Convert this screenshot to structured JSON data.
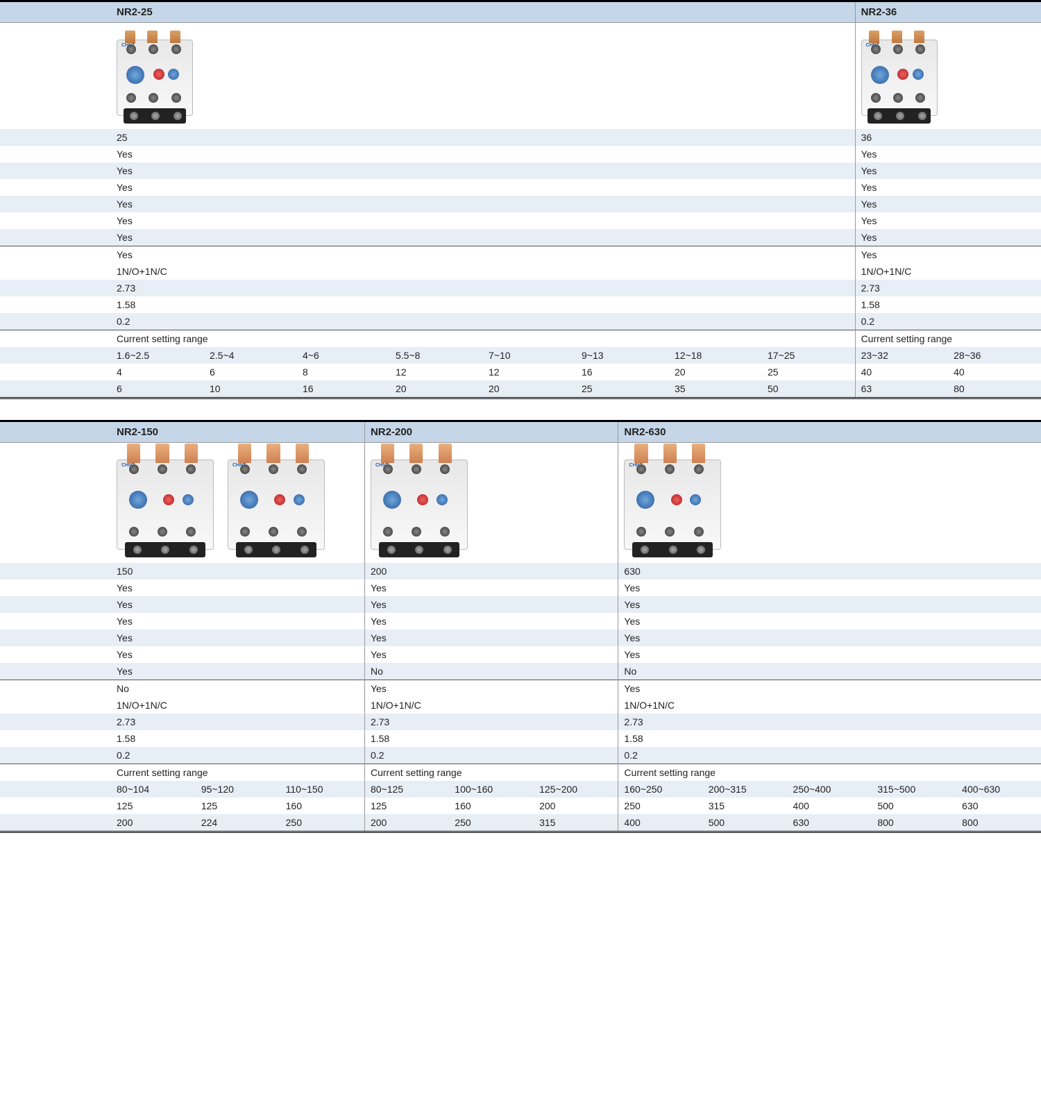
{
  "colors": {
    "header_bg": "#c5d6e8",
    "row_odd_bg": "#e8eef6",
    "row_even_bg": "#ffffff",
    "border_dark": "#000000",
    "border_light": "#999999",
    "text": "#222222",
    "brand_blue": "#2460a8",
    "copper": "#d08050",
    "dial_blue": "#2a5a9e",
    "btn_red": "#b02020"
  },
  "table1": {
    "products": [
      {
        "name": "NR2-25",
        "img_count": 1
      },
      {
        "name": "NR2-36",
        "img_count": 1
      }
    ],
    "spec_rows": [
      [
        "25",
        "36"
      ],
      [
        "Yes",
        "Yes"
      ],
      [
        "Yes",
        "Yes"
      ],
      [
        "Yes",
        "Yes"
      ],
      [
        "Yes",
        "Yes"
      ],
      [
        "Yes",
        "Yes"
      ],
      [
        "Yes",
        "Yes"
      ],
      [
        "Yes",
        "Yes"
      ],
      [
        "1N/O+1N/C",
        "1N/O+1N/C"
      ],
      [
        "2.73",
        "2.73"
      ],
      [
        "1.58",
        "1.58"
      ],
      [
        "0.2",
        "0.2"
      ]
    ],
    "odd_rows": [
      0,
      2,
      4,
      6,
      9,
      11
    ],
    "hline_rows": [
      7
    ],
    "csr_label": "Current setting range",
    "csr": {
      "ranges": [
        [
          "1.6~2.5",
          "2.5~4",
          "4~6",
          "5.5~8",
          "7~10",
          "9~13",
          "12~18",
          "17~25"
        ],
        [
          "23~32",
          "28~36"
        ]
      ],
      "row2": [
        [
          "4",
          "6",
          "8",
          "12",
          "12",
          "16",
          "20",
          "25"
        ],
        [
          "40",
          "40"
        ]
      ],
      "row3": [
        [
          "6",
          "10",
          "16",
          "20",
          "20",
          "25",
          "35",
          "50"
        ],
        [
          "63",
          "80"
        ]
      ]
    },
    "col_spans": [
      8,
      2
    ]
  },
  "table2": {
    "products": [
      {
        "name": "NR2-150",
        "img_count": 2
      },
      {
        "name": "NR2-200",
        "img_count": 1
      },
      {
        "name": "NR2-630",
        "img_count": 1
      }
    ],
    "spec_rows": [
      [
        "150",
        "200",
        "630"
      ],
      [
        "Yes",
        "Yes",
        "Yes"
      ],
      [
        "Yes",
        "Yes",
        "Yes"
      ],
      [
        "Yes",
        "Yes",
        "Yes"
      ],
      [
        "Yes",
        "Yes",
        "Yes"
      ],
      [
        "Yes",
        "Yes",
        "Yes"
      ],
      [
        "Yes",
        "No",
        "No"
      ],
      [
        "No",
        "Yes",
        "Yes"
      ],
      [
        "1N/O+1N/C",
        "1N/O+1N/C",
        "1N/O+1N/C"
      ],
      [
        "2.73",
        "2.73",
        "2.73"
      ],
      [
        "1.58",
        "1.58",
        "1.58"
      ],
      [
        "0.2",
        "0.2",
        "0.2"
      ]
    ],
    "odd_rows": [
      0,
      2,
      4,
      6,
      9,
      11
    ],
    "hline_rows": [
      7
    ],
    "csr_label": "Current setting range",
    "csr": {
      "ranges": [
        [
          "80~104",
          "95~120",
          "110~150"
        ],
        [
          "80~125",
          "100~160",
          "125~200"
        ],
        [
          "160~250",
          "200~315",
          "250~400",
          "315~500",
          "400~630"
        ]
      ],
      "row2": [
        [
          "125",
          "125",
          "160"
        ],
        [
          "125",
          "160",
          "200"
        ],
        [
          "250",
          "315",
          "400",
          "500",
          "630"
        ]
      ],
      "row3": [
        [
          "200",
          "224",
          "250"
        ],
        [
          "200",
          "250",
          "315"
        ],
        [
          "400",
          "500",
          "630",
          "800",
          "800"
        ]
      ]
    },
    "col_spans": [
      3,
      3,
      5
    ]
  }
}
